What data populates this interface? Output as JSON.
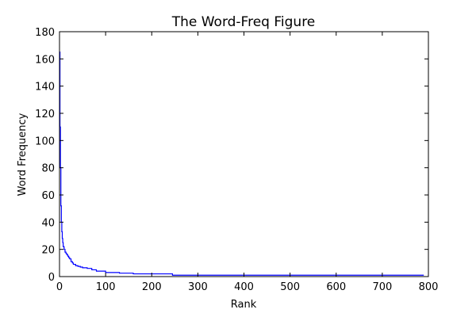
{
  "chart_data": {
    "type": "line",
    "title": "The Word-Freq Figure",
    "xlabel": "Rank",
    "ylabel": "Word Frequency",
    "xlim": [
      0,
      800
    ],
    "ylim": [
      0,
      180
    ],
    "xticks": [
      0,
      100,
      200,
      300,
      400,
      500,
      600,
      700,
      800
    ],
    "yticks": [
      0,
      20,
      40,
      60,
      80,
      100,
      120,
      140,
      160,
      180
    ],
    "grid": false,
    "legend": "none",
    "series": [
      {
        "color": "#0000ff",
        "x": [
          0,
          1,
          2,
          3,
          4,
          5,
          6,
          7,
          8,
          10,
          12,
          14,
          16,
          18,
          20,
          22,
          25,
          28,
          30,
          35,
          40,
          45,
          50,
          60,
          70,
          80,
          100,
          130,
          160,
          200,
          245,
          300,
          400,
          500,
          600,
          700,
          790
        ],
        "y": [
          165,
          110,
          80,
          52,
          40,
          33,
          28,
          25,
          22,
          20,
          18,
          17,
          16,
          15,
          14,
          13,
          11,
          10,
          9,
          8,
          7.5,
          7,
          6.5,
          6,
          5,
          4,
          3,
          2.5,
          2,
          2,
          1,
          1,
          1,
          1,
          1,
          1,
          1
        ],
        "step": true
      }
    ]
  }
}
